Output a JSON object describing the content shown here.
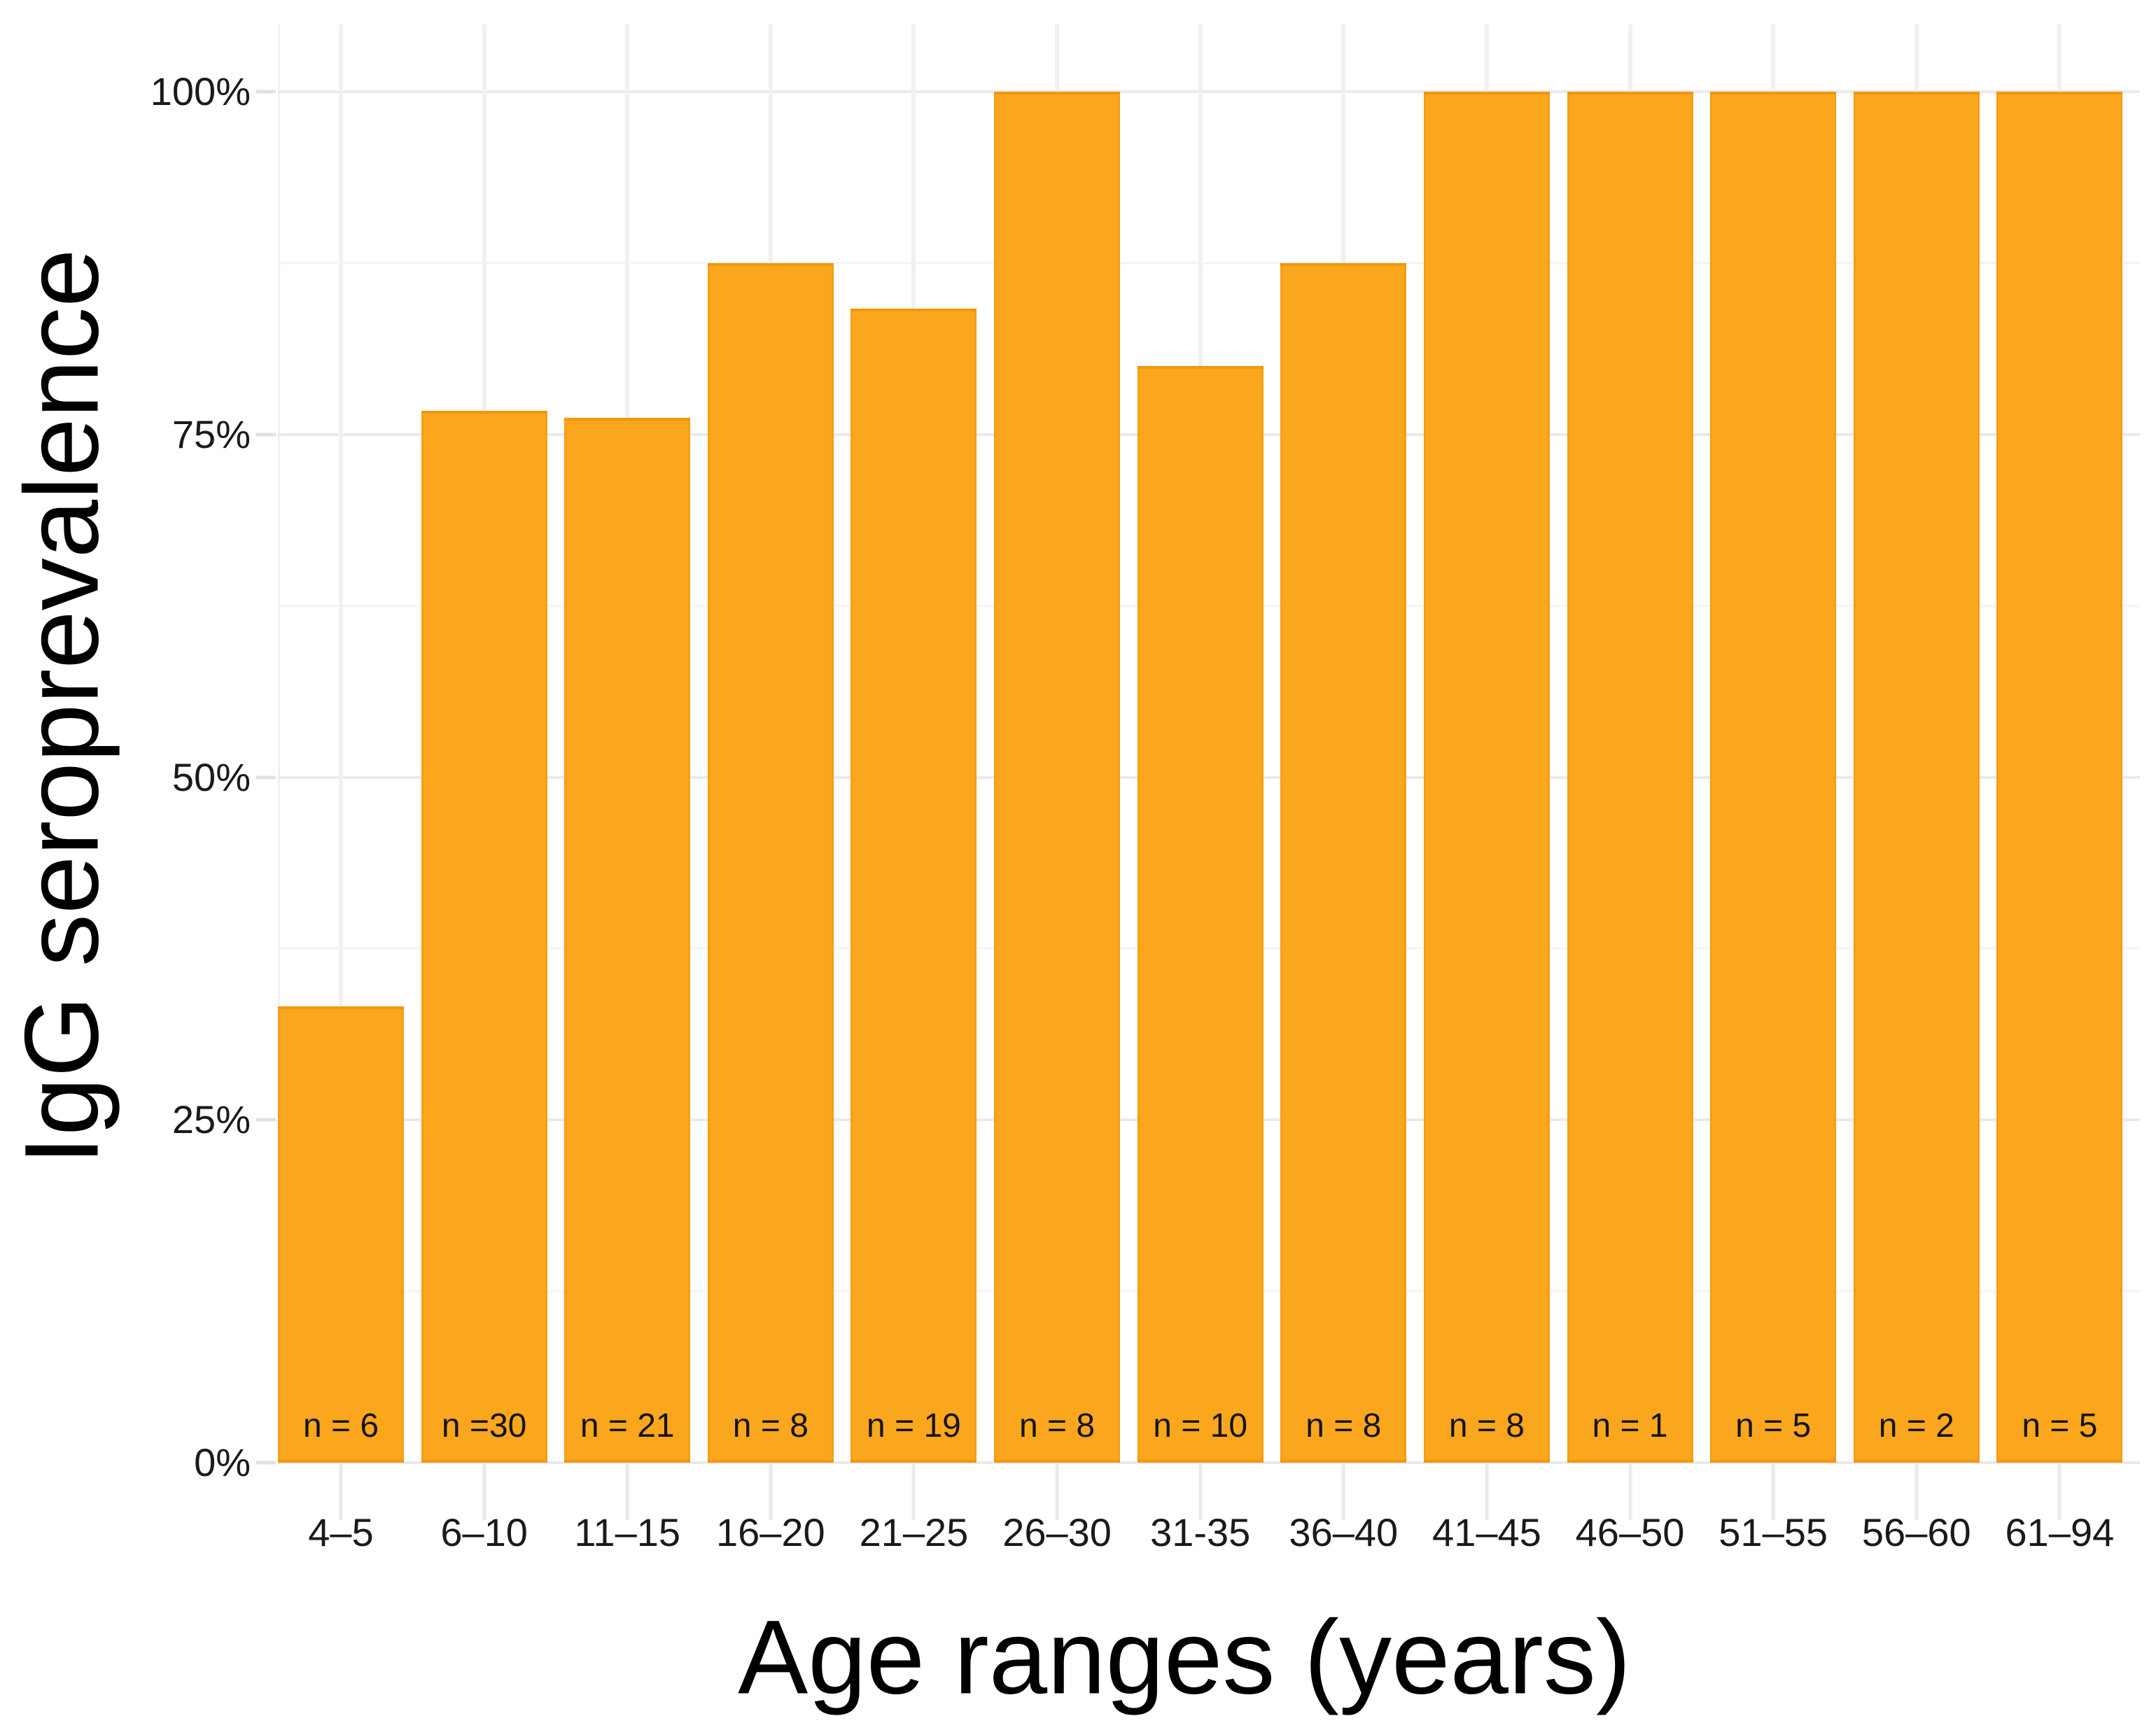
{
  "figure": {
    "background_color": "#ffffff",
    "text_color": "#141414"
  },
  "chart_data": {
    "type": "bar",
    "title": "",
    "xlabel": "Age ranges (years)",
    "ylabel": "IgG seroprevalence",
    "categories": [
      "4–5",
      "6–10",
      "11–15",
      "16–20",
      "21–25",
      "26–30",
      "31-35",
      "36–40",
      "41–45",
      "46–50",
      "51–55",
      "56–60",
      "61–94"
    ],
    "values": [
      33.3,
      76.7,
      76.2,
      87.5,
      84.2,
      100,
      80,
      87.5,
      100,
      100,
      100,
      100,
      100
    ],
    "bar_labels": [
      "n = 6",
      "n =30",
      "n = 21",
      "n = 8",
      "n = 19",
      "n = 8",
      "n = 10",
      "n = 8",
      "n = 8",
      "n = 1",
      "n = 5",
      "n = 2",
      "n = 5"
    ],
    "y_ticks": [
      "0%",
      "25%",
      "50%",
      "75%",
      "100%"
    ],
    "y_tick_values": [
      0,
      25,
      50,
      75,
      100
    ],
    "ylim": [
      0,
      100
    ],
    "bar_color": "#FBA71E",
    "bar_edge_color": "#EC8A00",
    "major_gridline_color": "#eaeaea",
    "minor_gridline_color": "#f4f4f4",
    "vertical_gridline_color": "#f1f1f1",
    "grid": "on",
    "legend_position": "none"
  }
}
